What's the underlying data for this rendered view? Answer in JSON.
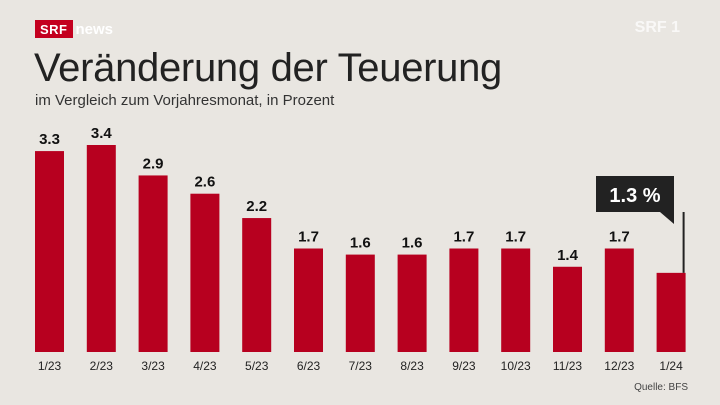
{
  "header": {
    "logo": {
      "srf": "SRF",
      "news": "news"
    },
    "watermark": "SRF 1"
  },
  "title": "Veränderung der Teuerung",
  "subtitle": "im Vergleich zum Vorjahresmonat, in Prozent",
  "source": "Quelle: BFS",
  "colors": {
    "bar": "#b7001f",
    "background": "#e9e6e1",
    "callout": "#222222"
  },
  "chart_data": {
    "type": "bar",
    "title": "Veränderung der Teuerung",
    "subtitle": "im Vergleich zum Vorjahresmonat, in Prozent",
    "categories": [
      "1/23",
      "2/23",
      "3/23",
      "4/23",
      "5/23",
      "6/23",
      "7/23",
      "8/23",
      "9/23",
      "10/23",
      "11/23",
      "12/23",
      "1/24"
    ],
    "values": [
      3.3,
      3.4,
      2.9,
      2.6,
      2.2,
      1.7,
      1.6,
      1.6,
      1.7,
      1.7,
      1.4,
      1.7,
      1.3
    ],
    "value_labels": [
      "3.3",
      "3.4",
      "2.9",
      "2.6",
      "2.2",
      "1.7",
      "1.6",
      "1.6",
      "1.7",
      "1.7",
      "1.4",
      "1.7",
      ""
    ],
    "callout": {
      "label": "1.3 %"
    },
    "ylim": [
      0,
      3.4
    ],
    "grid": false,
    "legend": "none"
  }
}
